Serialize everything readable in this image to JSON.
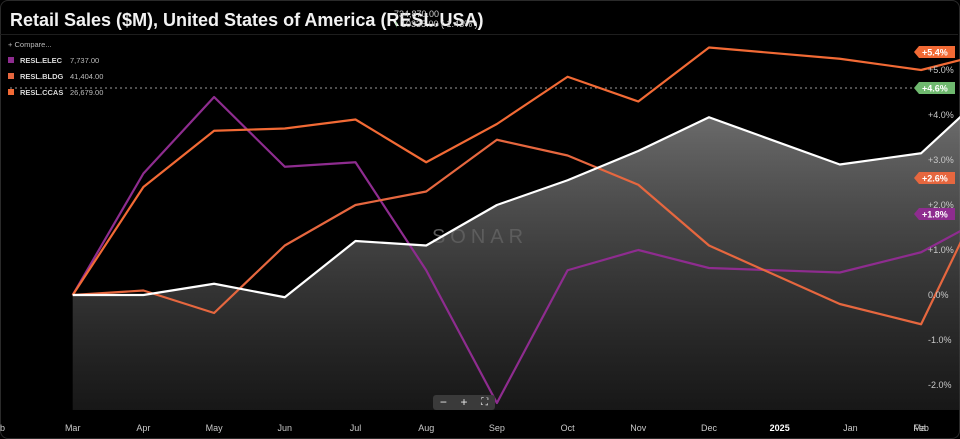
{
  "header": {
    "title": "Retail Sales ($M), United States of America (RESL.USA)",
    "value": "734,870.00",
    "change": "10335.00 ( 1.43% )"
  },
  "legend": {
    "compare_label": "Compare...",
    "items": [
      {
        "name": "RESL.ELEC",
        "value": "7,737.00",
        "color": "#8e2c8f"
      },
      {
        "name": "RESL.BLDG",
        "value": "41,404.00",
        "color": "#e6673f"
      },
      {
        "name": "RESL.CCAS",
        "value": "26,679.00",
        "color": "#f26a35"
      }
    ]
  },
  "watermark": "SONAR",
  "zoom": {
    "minus": "−",
    "plus": "+",
    "fit": "⛶"
  },
  "chart_data": {
    "type": "line",
    "categories": [
      "Feb",
      "Mar",
      "Apr",
      "May",
      "Jun",
      "Jul",
      "Aug",
      "Sep",
      "Oct",
      "Nov",
      "Dec",
      "2025",
      "Jan",
      "Feb",
      "Mar"
    ],
    "x_tick_labels": [
      "b",
      "Mar",
      "Apr",
      "May",
      "Jun",
      "Jul",
      "Aug",
      "Sep",
      "Oct",
      "Nov",
      "Dec",
      "2025",
      "Jan",
      "Feb",
      "Ma"
    ],
    "ylim": [
      -2.5,
      5.5
    ],
    "y_ticks": [
      -2,
      -1,
      0,
      1,
      2,
      3,
      4,
      5
    ],
    "y_tick_labels": [
      "-2.0%",
      "-1.0%",
      "0.0%",
      "+1.0%",
      "+2.0%",
      "+3.0%",
      "+4.0%",
      "+5.0%"
    ],
    "series": [
      {
        "name": "RESL.USA",
        "color": "#ffffff",
        "fill": true,
        "x": [
          1,
          2,
          3,
          4,
          5,
          6,
          7,
          8,
          9,
          10,
          11.85,
          13,
          14
        ],
        "values": [
          0.0,
          0.0,
          0.25,
          -0.05,
          1.2,
          1.1,
          2.0,
          2.55,
          3.2,
          3.95,
          2.9,
          3.15,
          4.6
        ],
        "last_label": "+4.6%",
        "badge_color": "#6fb96f"
      },
      {
        "name": "RESL.ELEC",
        "color": "#8e2c8f",
        "x": [
          1,
          2,
          3,
          4,
          5,
          6,
          7,
          8,
          9,
          10,
          11.85,
          13,
          14
        ],
        "values": [
          0.0,
          2.7,
          4.4,
          2.85,
          2.95,
          0.55,
          -2.4,
          0.55,
          1.0,
          0.6,
          0.5,
          0.95,
          1.8
        ],
        "last_label": "+1.8%",
        "badge_color": "#8e2c8f"
      },
      {
        "name": "RESL.BLDG",
        "color": "#e6673f",
        "x": [
          1,
          2,
          3,
          4,
          5,
          6,
          7,
          8,
          9,
          10,
          11.85,
          13,
          14
        ],
        "values": [
          0.0,
          0.1,
          -0.4,
          1.1,
          2.0,
          2.3,
          3.45,
          3.1,
          2.45,
          1.1,
          -0.2,
          -0.65,
          2.6
        ],
        "last_label": "+2.6%",
        "badge_color": "#e6673f"
      },
      {
        "name": "RESL.CCAS",
        "color": "#f26a35",
        "x": [
          1,
          2,
          3,
          4,
          5,
          6,
          7,
          8,
          9,
          10,
          11.85,
          13,
          14
        ],
        "values": [
          0.0,
          2.4,
          3.65,
          3.7,
          3.9,
          2.95,
          3.8,
          4.85,
          4.3,
          5.5,
          5.25,
          5.0,
          5.4
        ],
        "last_label": "+5.4%",
        "badge_color": "#f26a35"
      }
    ],
    "reference_line_value": 4.6
  }
}
